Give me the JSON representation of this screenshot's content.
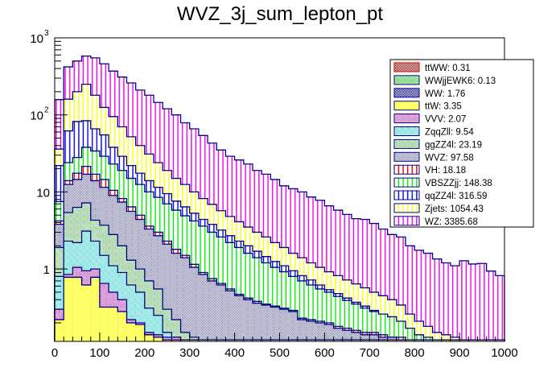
{
  "chart_data": {
    "type": "bar",
    "subtype": "stacked-histogram",
    "title": "WVZ_3j_sum_lepton_pt",
    "xlabel": "",
    "ylabel": "",
    "xlim": [
      0,
      1000
    ],
    "ylim": [
      0.115,
      1000
    ],
    "yscale": "log",
    "bin_width": 20,
    "x_ticks": [
      "0",
      "100",
      "200",
      "300",
      "400",
      "500",
      "600",
      "700",
      "800",
      "900",
      "1000"
    ],
    "x_tick_values": [
      0,
      100,
      200,
      300,
      400,
      500,
      600,
      700,
      800,
      900,
      1000
    ],
    "y_ticks": [
      {
        "value": 1,
        "label": "1"
      },
      {
        "value": 10,
        "label": "10"
      },
      {
        "value": 100,
        "label": "10",
        "exp": "2"
      },
      {
        "value": 1000,
        "label": "10",
        "exp": "3"
      }
    ],
    "legend_position": "top-right",
    "stack_order_bottom_to_top": [
      "ttW",
      "WW",
      "VVV",
      "ZqqZll",
      "ggZZ4l",
      "WVZ",
      "VH",
      "VBSZZjj",
      "qqZZ4l",
      "Zjets",
      "WZ"
    ],
    "legend": [
      {
        "name": "ttWW",
        "value": "0.31",
        "label": "ttWW: 0.31",
        "color": "#c80000",
        "fill": "cross",
        "line": "#c80000"
      },
      {
        "name": "WWjjEWK6",
        "value": "0.13",
        "label": "WWjjEWK6: 0.13",
        "color": "#33dd33",
        "fill": "cross",
        "line": "#00008b"
      },
      {
        "name": "WW",
        "value": "1.76",
        "label": "WW: 1.76",
        "color": "#0000cc",
        "fill": "cross",
        "line": "#00008b"
      },
      {
        "name": "ttW",
        "value": "3.35",
        "label": "ttW: 3.35",
        "color": "#ffff66",
        "fill": "solid",
        "line": "#00008b"
      },
      {
        "name": "VVV",
        "value": "2.07",
        "label": "VVV: 2.07",
        "color": "#dd44dd",
        "fill": "cross",
        "line": "#00008b"
      },
      {
        "name": "ZqqZll",
        "value": "9.54",
        "label": "ZqqZll: 9.54",
        "color": "#44e6e6",
        "fill": "cross",
        "line": "#00008b"
      },
      {
        "name": "ggZZ4l",
        "value": "23.19",
        "label": "ggZZ4l: 23.19",
        "color": "#77cc77",
        "fill": "cross",
        "line": "#00008b"
      },
      {
        "name": "WVZ",
        "value": "97.58",
        "label": "WVZ: 97.58",
        "color": "#7777bb",
        "fill": "cross",
        "line": "#00008b"
      },
      {
        "name": "VH",
        "value": "18.18",
        "label": "VH: 18.18",
        "color": "#dd0000",
        "fill": "vlines",
        "line": "#00008b"
      },
      {
        "name": "VBSZZjj",
        "value": "148.38",
        "label": "VBSZZjj: 148.38",
        "color": "#00ee00",
        "fill": "vlines",
        "line": "#00008b"
      },
      {
        "name": "qqZZ4l",
        "value": "316.59",
        "label": "qqZZ4l: 316.59",
        "color": "#0000ee",
        "fill": "vlines",
        "line": "#00008b"
      },
      {
        "name": "Zjets",
        "value": "1054.43",
        "label": "Zjets: 1054.43",
        "color": "#ffff00",
        "fill": "vlines",
        "line": "#00008b"
      },
      {
        "name": "WZ",
        "value": "3385.68",
        "label": "WZ: 3385.68",
        "color": "#ee00ee",
        "fill": "vlines",
        "line": "#00008b"
      }
    ],
    "stack_cumulative_tops": {
      "ttW": [
        0.22,
        0.78,
        0.78,
        0.62,
        0.78,
        0.32,
        0.32,
        0.28,
        0.2,
        0.19,
        0.14,
        0.13,
        0.12,
        0.12,
        0.12,
        0.12,
        0.12,
        0.12,
        0.12,
        0.12,
        0.12,
        0.12,
        0.12,
        0.12,
        0.12,
        0.12,
        0.12,
        0.12,
        0.12,
        0.12,
        0.12,
        0.12,
        0.12,
        0.12,
        0.12,
        0.12,
        0.12,
        0.12,
        0.12,
        0.12,
        0.12,
        0.12,
        0.12,
        0.12,
        0.12,
        0.12,
        0.12,
        0.12,
        0.12,
        0.12
      ],
      "WW": [
        0.22,
        0.78,
        0.78,
        0.62,
        0.78,
        0.32,
        0.32,
        0.28,
        0.2,
        0.19,
        0.14,
        0.13,
        0.12,
        0.12,
        0.12,
        0.12,
        0.12,
        0.12,
        0.12,
        0.12,
        0.12,
        0.12,
        0.12,
        0.12,
        0.12,
        0.12,
        0.12,
        0.12,
        0.12,
        0.12,
        0.12,
        0.12,
        0.12,
        0.12,
        0.12,
        0.12,
        0.12,
        0.12,
        0.12,
        0.12,
        0.12,
        0.12,
        0.12,
        0.12,
        0.12,
        0.12,
        0.12,
        0.12,
        0.12,
        0.12
      ],
      "VVV": [
        0.3,
        0.85,
        1.05,
        0.95,
        1.0,
        0.65,
        0.5,
        0.4,
        0.22,
        0.2,
        0.15,
        0.14,
        0.13,
        0.13,
        0.12,
        0.12,
        0.12,
        0.12,
        0.12,
        0.12,
        0.12,
        0.12,
        0.12,
        0.12,
        0.12,
        0.12,
        0.12,
        0.12,
        0.12,
        0.12,
        0.12,
        0.12,
        0.12,
        0.12,
        0.12,
        0.12,
        0.12,
        0.12,
        0.12,
        0.12,
        0.12,
        0.12,
        0.12,
        0.12,
        0.12,
        0.12,
        0.12,
        0.12,
        0.12,
        0.12
      ],
      "ZqqZll": [
        0.8,
        2.3,
        2.2,
        3.1,
        2.3,
        1.5,
        1.1,
        0.9,
        0.62,
        0.5,
        0.31,
        0.25,
        0.15,
        0.13,
        0.12,
        0.12,
        0.12,
        0.12,
        0.12,
        0.12,
        0.12,
        0.12,
        0.12,
        0.12,
        0.12,
        0.12,
        0.12,
        0.12,
        0.12,
        0.12,
        0.12,
        0.12,
        0.12,
        0.12,
        0.12,
        0.12,
        0.12,
        0.12,
        0.12,
        0.12,
        0.12,
        0.12,
        0.12,
        0.12,
        0.12,
        0.12,
        0.12,
        0.12,
        0.12,
        0.12
      ],
      "ggZZ4l": [
        1.9,
        5.4,
        6.3,
        7.2,
        4.3,
        3.7,
        2.8,
        2.0,
        1.3,
        1.0,
        0.7,
        0.55,
        0.3,
        0.22,
        0.15,
        0.13,
        0.12,
        0.12,
        0.12,
        0.12,
        0.12,
        0.12,
        0.12,
        0.12,
        0.12,
        0.12,
        0.12,
        0.12,
        0.12,
        0.12,
        0.12,
        0.12,
        0.12,
        0.12,
        0.12,
        0.12,
        0.12,
        0.12,
        0.12,
        0.12,
        0.12,
        0.12,
        0.12,
        0.12,
        0.12,
        0.12,
        0.12,
        0.12,
        0.12,
        0.12
      ],
      "WVZ": [
        3.8,
        12.5,
        14.5,
        17.0,
        14.0,
        11.5,
        9.0,
        7.4,
        5.6,
        4.4,
        3.3,
        2.7,
        2.1,
        1.6,
        1.4,
        1.05,
        0.85,
        0.7,
        0.62,
        0.52,
        0.45,
        0.4,
        0.36,
        0.34,
        0.32,
        0.3,
        0.28,
        0.22,
        0.21,
        0.2,
        0.19,
        0.17,
        0.16,
        0.15,
        0.14,
        0.14,
        0.13,
        0.13,
        0.12,
        0.12,
        0.12,
        0.12,
        0.12,
        0.12,
        0.12,
        0.12,
        0.12,
        0.12,
        0.12,
        0.12
      ],
      "VH": [
        4.2,
        14.0,
        17.5,
        21.5,
        17.0,
        14.5,
        10.5,
        8.2,
        6.4,
        5.0,
        3.6,
        3.0,
        2.3,
        1.8,
        1.5,
        1.15,
        0.9,
        0.75,
        0.65,
        0.55,
        0.47,
        0.42,
        0.38,
        0.35,
        0.33,
        0.31,
        0.29,
        0.23,
        0.22,
        0.21,
        0.2,
        0.18,
        0.17,
        0.16,
        0.15,
        0.15,
        0.14,
        0.13,
        0.13,
        0.12,
        0.12,
        0.12,
        0.12,
        0.12,
        0.12,
        0.12,
        0.12,
        0.12,
        0.12,
        0.12
      ],
      "VBSZZjj": [
        7.5,
        24.0,
        28.0,
        38.0,
        34.0,
        29.0,
        23.0,
        19.0,
        15.0,
        12.5,
        10.0,
        8.5,
        7.0,
        5.8,
        4.9,
        4.2,
        3.6,
        3.0,
        2.6,
        2.2,
        1.9,
        1.6,
        1.4,
        1.2,
        1.05,
        0.92,
        0.8,
        0.7,
        0.62,
        0.55,
        0.5,
        0.44,
        0.39,
        0.35,
        0.31,
        0.28,
        0.26,
        0.24,
        0.21,
        0.17,
        0.14,
        0.13,
        0.12,
        0.12,
        0.12,
        0.12,
        0.12,
        0.12,
        0.12,
        0.12
      ],
      "qqZZ4l": [
        22.0,
        62.0,
        82.0,
        84.0,
        66.0,
        55.0,
        38.0,
        29.0,
        22.0,
        17.5,
        14.0,
        11.5,
        9.5,
        7.6,
        6.4,
        5.3,
        4.4,
        3.8,
        3.2,
        2.7,
        2.3,
        2.0,
        1.7,
        1.45,
        1.25,
        1.1,
        0.95,
        0.82,
        0.72,
        0.62,
        0.54,
        0.48,
        0.42,
        0.37,
        0.33,
        0.29,
        0.26,
        0.22,
        0.19,
        0.15,
        0.13,
        0.12,
        0.12,
        0.12,
        0.12,
        0.12,
        0.12,
        0.12,
        0.12,
        0.12
      ],
      "Zjets": [
        36.0,
        160.0,
        200.0,
        250.0,
        180.0,
        125.0,
        95.0,
        70.0,
        52.0,
        40.0,
        31.0,
        24.0,
        19.0,
        15.0,
        12.5,
        10.0,
        8.2,
        6.9,
        5.7,
        4.8,
        4.1,
        3.5,
        3.0,
        2.6,
        2.2,
        1.9,
        1.6,
        1.4,
        1.2,
        1.05,
        0.92,
        0.82,
        0.72,
        0.64,
        0.57,
        0.5,
        0.45,
        0.4,
        0.34,
        0.26,
        0.21,
        0.18,
        0.15,
        0.14,
        0.13,
        0.12,
        0.12,
        0.12,
        0.12,
        0.12
      ],
      "WZ": [
        158.0,
        420.0,
        500.0,
        580.0,
        550.0,
        460.0,
        370.0,
        310.0,
        260.0,
        210.0,
        180.0,
        145.0,
        120.0,
        100.0,
        79.0,
        66.0,
        54.0,
        43.0,
        35.0,
        29.0,
        26.0,
        23.0,
        19.0,
        17.0,
        14.5,
        12.0,
        11.0,
        10.0,
        8.6,
        7.8,
        6.6,
        5.8,
        5.1,
        4.5,
        4.4,
        3.9,
        3.3,
        2.8,
        2.6,
        2.0,
        1.75,
        1.6,
        1.35,
        1.2,
        1.1,
        1.28,
        1.16,
        1.18,
        0.94,
        0.82
      ]
    }
  }
}
